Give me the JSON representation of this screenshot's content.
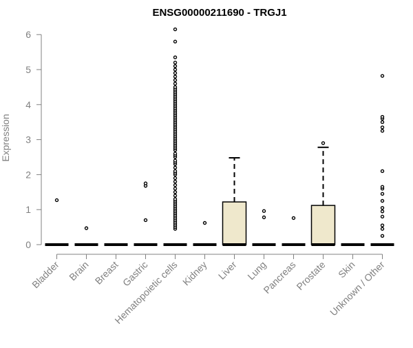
{
  "chart_data": {
    "type": "box",
    "title": "ENSG00000211690 - TRGJ1",
    "xlabel": "",
    "ylabel": "Expression",
    "ylim": [
      0,
      6.2
    ],
    "yticks": [
      0,
      1,
      2,
      3,
      4,
      5,
      6
    ],
    "grid": false,
    "box_fill": "#efe8cc",
    "categories": [
      "Bladder",
      "Brain",
      "Breast",
      "Gastric",
      "Hematopoietic cells",
      "Kidney",
      "Liver",
      "Lung",
      "Pancreas",
      "Prostate",
      "Skin",
      "Unknown / Other"
    ],
    "boxes": [
      {
        "q1": 0,
        "median": 0,
        "q3": 0,
        "whisker_low": 0,
        "whisker_high": 0,
        "outliers": [
          1.27
        ]
      },
      {
        "q1": 0,
        "median": 0,
        "q3": 0,
        "whisker_low": 0,
        "whisker_high": 0,
        "outliers": [
          0.47
        ]
      },
      {
        "q1": 0,
        "median": 0,
        "q3": 0,
        "whisker_low": 0,
        "whisker_high": 0,
        "outliers": []
      },
      {
        "q1": 0,
        "median": 0,
        "q3": 0,
        "whisker_low": 0,
        "whisker_high": 0,
        "outliers": [
          0.7,
          1.68,
          1.75
        ]
      },
      {
        "q1": 0,
        "median": 0,
        "q3": 0,
        "whisker_low": 0,
        "whisker_high": 0,
        "outliers": [
          0.45,
          0.5,
          0.55,
          0.6,
          0.65,
          0.7,
          0.75,
          0.8,
          0.85,
          0.9,
          0.95,
          1.0,
          1.05,
          1.1,
          1.15,
          1.2,
          1.25,
          1.3,
          1.4,
          1.5,
          1.6,
          1.7,
          1.8,
          1.9,
          2.0,
          2.05,
          2.1,
          2.2,
          2.3,
          2.35,
          2.4,
          2.5,
          2.55,
          2.6,
          2.7,
          2.75,
          2.8,
          2.85,
          2.9,
          2.95,
          3.0,
          3.05,
          3.1,
          3.15,
          3.2,
          3.25,
          3.3,
          3.35,
          3.4,
          3.45,
          3.5,
          3.55,
          3.6,
          3.65,
          3.7,
          3.75,
          3.8,
          3.85,
          3.9,
          3.95,
          4.0,
          4.05,
          4.1,
          4.15,
          4.2,
          4.25,
          4.3,
          4.35,
          4.4,
          4.45,
          4.5,
          4.6,
          4.7,
          4.8,
          4.9,
          5.0,
          5.1,
          5.2,
          5.35,
          5.8,
          6.15
        ]
      },
      {
        "q1": 0,
        "median": 0,
        "q3": 0,
        "whisker_low": 0,
        "whisker_high": 0,
        "outliers": [
          0.62
        ]
      },
      {
        "q1": 0,
        "median": 0,
        "q3": 1.22,
        "whisker_low": 0,
        "whisker_high": 2.48,
        "outliers": []
      },
      {
        "q1": 0,
        "median": 0,
        "q3": 0,
        "whisker_low": 0,
        "whisker_high": 0,
        "outliers": [
          0.78,
          0.96
        ]
      },
      {
        "q1": 0,
        "median": 0,
        "q3": 0,
        "whisker_low": 0,
        "whisker_high": 0,
        "outliers": [
          0.76
        ]
      },
      {
        "q1": 0,
        "median": 0,
        "q3": 1.12,
        "whisker_low": 0,
        "whisker_high": 2.78,
        "outliers": [
          2.9
        ]
      },
      {
        "q1": 0,
        "median": 0,
        "q3": 0,
        "whisker_low": 0,
        "whisker_high": 0,
        "outliers": []
      },
      {
        "q1": 0,
        "median": 0,
        "q3": 0,
        "whisker_low": 0,
        "whisker_high": 0,
        "outliers": [
          0.25,
          0.45,
          0.55,
          0.8,
          0.95,
          1.05,
          1.25,
          1.45,
          1.6,
          1.65,
          2.1,
          3.25,
          3.35,
          3.5,
          3.6,
          3.65,
          4.82
        ]
      }
    ]
  }
}
